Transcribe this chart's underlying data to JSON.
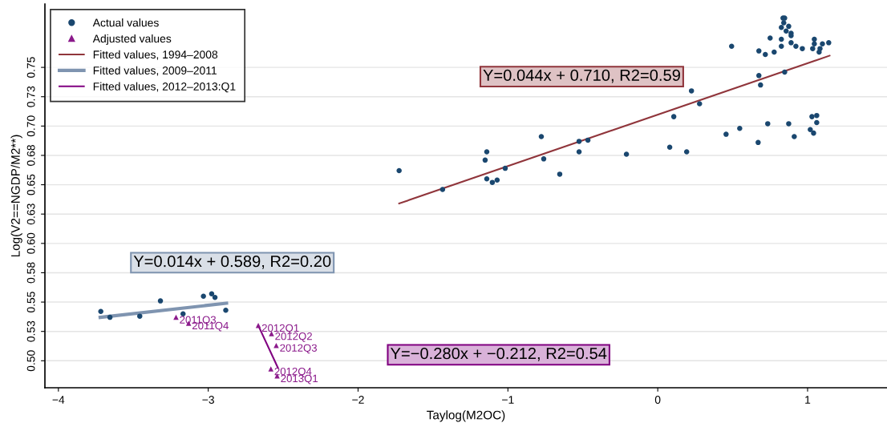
{
  "chart_data": {
    "type": "scatter",
    "xlabel": "Taylog(M2OC)",
    "ylabel": "Log(V2==NGDP/M2**)",
    "xlim": [
      -4.09,
      1.53
    ],
    "ylim": [
      0.477,
      0.804
    ],
    "xticks": [
      {
        "value": -4,
        "label": "−4"
      },
      {
        "value": -3,
        "label": "−3"
      },
      {
        "value": -2,
        "label": "−2"
      },
      {
        "value": -1,
        "label": "−1"
      },
      0,
      1
    ],
    "yticks": [
      {
        "value": 0.5,
        "label": "0.50"
      },
      {
        "value": 0.525,
        "label": "0.53"
      },
      {
        "value": 0.55,
        "label": "0.55"
      },
      {
        "value": 0.575,
        "label": "0.58"
      },
      {
        "value": 0.6,
        "label": "0.60"
      },
      {
        "value": 0.625,
        "label": "0.63"
      },
      {
        "value": 0.65,
        "label": "0.65"
      },
      {
        "value": 0.675,
        "label": "0.68"
      },
      {
        "value": 0.7,
        "label": "0.70"
      },
      {
        "value": 0.725,
        "label": "0.73"
      },
      {
        "value": 0.75,
        "label": "0.75"
      }
    ],
    "grid": "y",
    "legend": "top left",
    "series": [
      {
        "name": "Actual values",
        "marker": "circle",
        "color": "#1a476f",
        "x": [
          -1.726,
          -1.436,
          -1.141,
          -1.152,
          -1.141,
          -1.104,
          -1.072,
          -1.018,
          -0.777,
          -0.761,
          -0.654,
          -0.525,
          -0.525,
          -0.466,
          -0.209,
          0.08,
          0.107,
          0.193,
          0.225,
          0.279,
          0.456,
          0.493,
          0.547,
          0.67,
          0.675,
          0.675,
          0.686,
          0.718,
          0.734,
          0.75,
          0.777,
          0.825,
          0.825,
          0.825,
          0.836,
          0.847,
          0.841,
          0.857,
          0.874,
          0.89,
          0.89,
          0.847,
          0.874,
          0.89,
          0.911,
          0.922,
          0.965,
          1.018,
          1.029,
          1.061,
          1.04,
          1.061,
          1.034,
          1.045,
          1.045,
          1.077,
          1.083,
          1.099,
          1.141,
          -3.717,
          -3.656,
          -3.457,
          -3.319,
          -3.168,
          -3.032,
          -2.977,
          -2.955,
          -2.883
        ],
        "values": [
          0.662,
          0.646,
          0.678,
          0.671,
          0.655,
          0.652,
          0.654,
          0.664,
          0.691,
          0.672,
          0.659,
          0.687,
          0.678,
          0.688,
          0.676,
          0.682,
          0.708,
          0.678,
          0.73,
          0.719,
          0.693,
          0.768,
          0.698,
          0.686,
          0.764,
          0.743,
          0.735,
          0.761,
          0.702,
          0.775,
          0.763,
          0.768,
          0.774,
          0.784,
          0.792,
          0.792,
          0.788,
          0.781,
          0.785,
          0.779,
          0.777,
          0.746,
          0.702,
          0.771,
          0.691,
          0.768,
          0.766,
          0.697,
          0.708,
          0.709,
          0.694,
          0.703,
          0.766,
          0.77,
          0.774,
          0.763,
          0.766,
          0.77,
          0.771,
          0.542,
          0.537,
          0.538,
          0.551,
          0.54,
          0.555,
          0.557,
          0.554,
          0.543
        ]
      },
      {
        "name": "Adjusted values",
        "marker": "triangle",
        "color": "#8b1a8b",
        "x": [
          -3.215,
          -3.131,
          -2.666,
          -2.578,
          -2.546,
          -2.582,
          -2.54
        ],
        "values": [
          0.537,
          0.532,
          0.53,
          0.523,
          0.513,
          0.493,
          0.487
        ],
        "value_labels": [
          "2011Q3",
          "2011Q4",
          "2012Q1",
          "2012Q2",
          "2012Q3",
          "2012Q4",
          "2013Q1"
        ]
      },
      {
        "name": "Fitted values, 1994–2008",
        "type": "line",
        "color": "#90353b",
        "x": [
          -1.726,
          1.147
        ],
        "values": [
          0.634,
          0.76
        ]
      },
      {
        "name": "Fitted values, 2009–2011",
        "type": "line",
        "color": "#7f94b0",
        "x": [
          -3.721,
          -2.878
        ],
        "values": [
          0.537,
          0.549
        ]
      },
      {
        "name": "Fitted values, 2012–2013:Q1",
        "type": "line",
        "color": "#800080",
        "x": [
          -2.666,
          -2.535
        ],
        "values": [
          0.53,
          0.494
        ]
      }
    ],
    "annotations": [
      "Y=0.044x + 0.710, R2=0.59",
      "Y=0.014x + 0.589, R2=0.20",
      "Y=−0.280x + −0.212, R2=0.54"
    ]
  }
}
